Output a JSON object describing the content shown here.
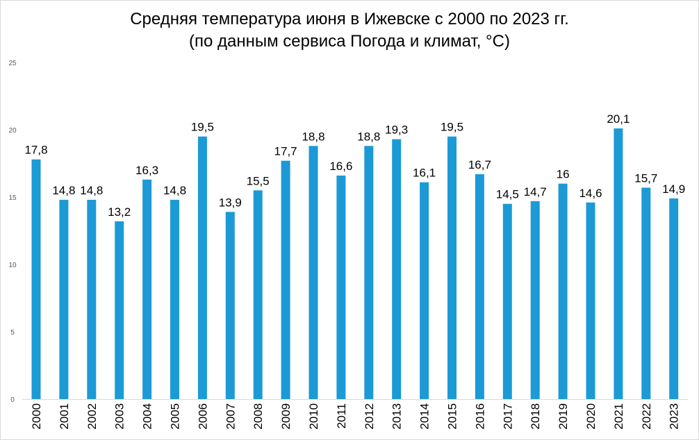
{
  "chart_data": {
    "type": "bar",
    "title": "Средняя температура июня в Ижевске с 2000 по 2023 гг.",
    "subtitle": "(по данным сервиса Погода и климат, °C)",
    "xlabel": "",
    "ylabel": "",
    "ylim": [
      0,
      25
    ],
    "yticks": [
      "0",
      "5",
      "10",
      "15",
      "20",
      "25"
    ],
    "grid": false,
    "bar_color": "#1b9ad6",
    "categories": [
      "2000",
      "2001",
      "2002",
      "2003",
      "2004",
      "2005",
      "2006",
      "2007",
      "2008",
      "2009",
      "2010",
      "2011",
      "2012",
      "2013",
      "2014",
      "2015",
      "2016",
      "2017",
      "2018",
      "2019",
      "2020",
      "2021",
      "2022",
      "2023"
    ],
    "values": [
      17.8,
      14.8,
      14.8,
      13.2,
      16.3,
      14.8,
      19.5,
      13.9,
      15.5,
      17.7,
      18.8,
      16.6,
      18.8,
      19.3,
      16.1,
      19.5,
      16.7,
      14.5,
      14.7,
      16,
      14.6,
      20.1,
      15.7,
      14.9
    ],
    "labels": [
      "17,8",
      "14,8",
      "14,8",
      "13,2",
      "16,3",
      "14,8",
      "19,5",
      "13,9",
      "15,5",
      "17,7",
      "18,8",
      "16,6",
      "18,8",
      "19,3",
      "16,1",
      "19,5",
      "16,7",
      "14,5",
      "14,7",
      "16",
      "14,6",
      "20,1",
      "15,7",
      "14,9"
    ]
  }
}
